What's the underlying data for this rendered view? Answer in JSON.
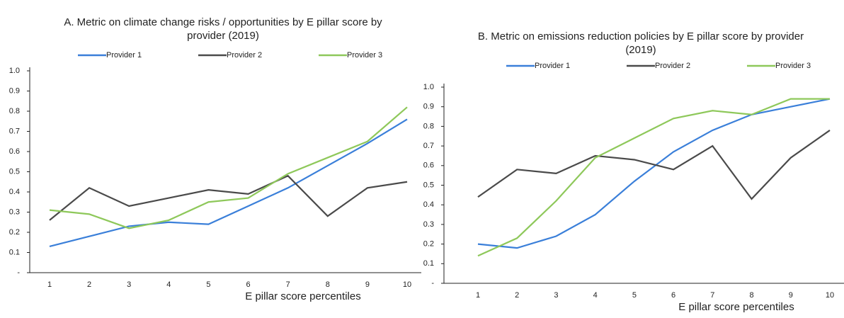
{
  "chart_data": [
    {
      "type": "line",
      "title": "A. Metric on climate change risks / opportunities by E pillar score by provider (2019)",
      "x_label": "E pillar score percentiles",
      "categories": [
        "1",
        "2",
        "3",
        "4",
        "5",
        "6",
        "7",
        "8",
        "9",
        "10"
      ],
      "ylim": [
        0,
        1
      ],
      "yticks": [
        {
          "value": 0,
          "label": "-"
        },
        0.1,
        0.2,
        0.3,
        0.4,
        0.5,
        0.6,
        0.7,
        0.8,
        0.9,
        {
          "value": 1,
          "label": "1.0"
        }
      ],
      "series": [
        {
          "name": "Provider 1",
          "color": "#3a7fd9",
          "values": [
            0.13,
            0.18,
            0.23,
            0.25,
            0.24,
            0.33,
            0.42,
            0.53,
            0.64,
            0.76
          ]
        },
        {
          "name": "Provider 2",
          "color": "#4a4a4a",
          "values": [
            0.26,
            0.42,
            0.33,
            0.37,
            0.41,
            0.39,
            0.48,
            0.28,
            0.42,
            0.45
          ]
        },
        {
          "name": "Provider 3",
          "color": "#8ec85a",
          "values": [
            0.31,
            0.29,
            0.22,
            0.26,
            0.35,
            0.37,
            0.49,
            0.57,
            0.65,
            0.82
          ]
        }
      ]
    },
    {
      "type": "line",
      "title": "B. Metric on emissions reduction policies by E pillar score by provider (2019)",
      "x_label": "E pillar score percentiles",
      "categories": [
        "1",
        "2",
        "3",
        "4",
        "5",
        "6",
        "7",
        "8",
        "9",
        "10"
      ],
      "ylim": [
        0,
        1
      ],
      "yticks": [
        {
          "value": 0,
          "label": "-"
        },
        0.1,
        0.2,
        0.3,
        0.4,
        0.5,
        0.6,
        0.7,
        0.8,
        0.9,
        {
          "value": 1,
          "label": "1.0"
        }
      ],
      "series": [
        {
          "name": "Provider 1",
          "color": "#3a7fd9",
          "values": [
            0.2,
            0.18,
            0.24,
            0.35,
            0.52,
            0.67,
            0.78,
            0.86,
            0.9,
            0.94
          ]
        },
        {
          "name": "Provider 2",
          "color": "#4a4a4a",
          "values": [
            0.44,
            0.58,
            0.56,
            0.65,
            0.63,
            0.58,
            0.7,
            0.43,
            0.64,
            0.78
          ]
        },
        {
          "name": "Provider 3",
          "color": "#8ec85a",
          "values": [
            0.14,
            0.23,
            0.42,
            0.64,
            0.74,
            0.84,
            0.88,
            0.86,
            0.94,
            0.94
          ]
        }
      ]
    }
  ]
}
